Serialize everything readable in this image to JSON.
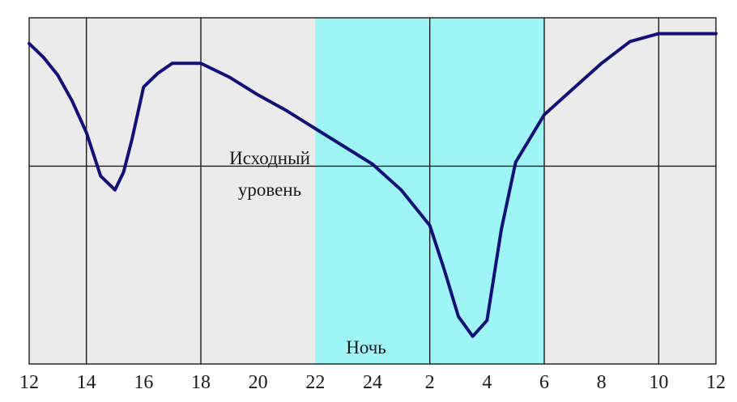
{
  "chart_data": {
    "type": "line",
    "title": "",
    "xlabel": "",
    "ylabel": "",
    "x_ticks": [
      "12",
      "14",
      "16",
      "18",
      "20",
      "22",
      "24",
      "2",
      "4",
      "6",
      "8",
      "10",
      "12"
    ],
    "x_range_hours": [
      0,
      24
    ],
    "reference_line": {
      "label_line1": "Исходный",
      "label_line2": "уровень",
      "y": 0
    },
    "night_band": {
      "label": "Ночь",
      "start_hour": 10,
      "end_hour": 18
    },
    "vertical_grid_hours": [
      2,
      6,
      14,
      18,
      22
    ],
    "ylim": [
      -1.0,
      0.75
    ],
    "colors": {
      "background": "#ebebeb",
      "night": "#9ff5f6",
      "line": "#111177",
      "grid": "#1a1a1a"
    },
    "series": [
      {
        "x": [
          0,
          0.5,
          1,
          1.5,
          2,
          2.5,
          3,
          3.3,
          3.6,
          4,
          4.5,
          5,
          6,
          7,
          8,
          9,
          10,
          11,
          12,
          13,
          14,
          14.5,
          15,
          15.5,
          16,
          16.5,
          17,
          18,
          19,
          20,
          21,
          22,
          23,
          24
        ],
        "y": [
          0.62,
          0.55,
          0.46,
          0.33,
          0.17,
          -0.05,
          -0.12,
          -0.03,
          0.14,
          0.4,
          0.47,
          0.52,
          0.52,
          0.45,
          0.36,
          0.28,
          0.19,
          0.1,
          0.01,
          -0.12,
          -0.3,
          -0.52,
          -0.76,
          -0.86,
          -0.78,
          -0.32,
          0.02,
          0.26,
          0.39,
          0.52,
          0.63,
          0.67,
          0.67,
          0.67
        ]
      }
    ]
  }
}
